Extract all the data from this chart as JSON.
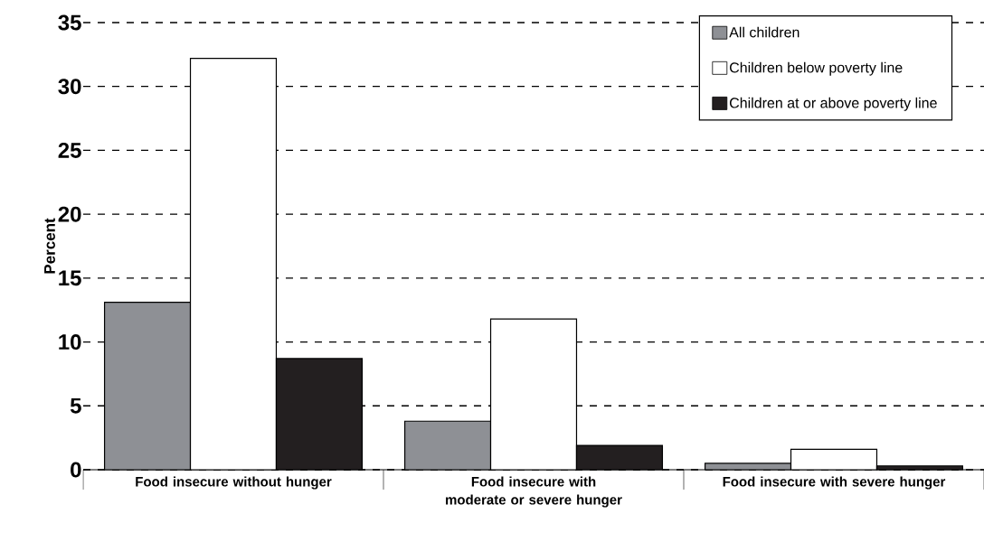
{
  "chart_data": {
    "type": "bar",
    "ylabel": "Percent",
    "categories": [
      "Food insecure without hunger",
      "Food insecure with moderate or severe hunger",
      "Food insecure with severe hunger"
    ],
    "series": [
      {
        "name": "All children",
        "color": "#8e9095",
        "values": [
          13.1,
          3.8,
          0.5
        ]
      },
      {
        "name": "Children below poverty line",
        "color": "#ffffff",
        "values": [
          32.2,
          11.8,
          1.6
        ]
      },
      {
        "name": "Children at or above poverty line",
        "color": "#231f20",
        "values": [
          8.7,
          1.9,
          0.3
        ]
      }
    ],
    "ylim": [
      0,
      35
    ],
    "yticks": [
      0,
      5,
      10,
      15,
      20,
      25,
      30,
      35
    ],
    "grid": "y",
    "legend": "top right"
  }
}
